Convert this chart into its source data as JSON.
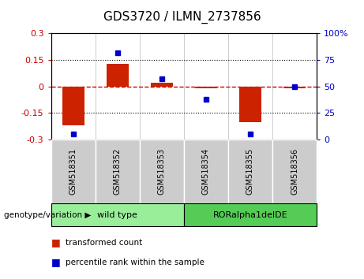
{
  "title": "GDS3720 / ILMN_2737856",
  "samples": [
    "GSM518351",
    "GSM518352",
    "GSM518353",
    "GSM518354",
    "GSM518355",
    "GSM518356"
  ],
  "red_values": [
    -0.22,
    0.13,
    0.02,
    -0.01,
    -0.2,
    -0.01
  ],
  "blue_percentiles": [
    5,
    82,
    57,
    38,
    5,
    50
  ],
  "ylim_left": [
    -0.3,
    0.3
  ],
  "ylim_right": [
    0,
    100
  ],
  "yticks_left": [
    -0.3,
    -0.15,
    0,
    0.15,
    0.3
  ],
  "yticks_right": [
    0,
    25,
    50,
    75,
    100
  ],
  "hline_dotted": [
    -0.15,
    0.15
  ],
  "hline_zero_color": "#cc0000",
  "bar_color": "#cc2200",
  "dot_color": "#0000cc",
  "group_labels": [
    "wild type",
    "RORalpha1delDE"
  ],
  "group_ranges": [
    [
      0,
      3
    ],
    [
      3,
      6
    ]
  ],
  "group_colors": [
    "#99ee99",
    "#55cc55"
  ],
  "genotype_label": "genotype/variation",
  "legend_red": "transformed count",
  "legend_blue": "percentile rank within the sample",
  "bg_color": "#ffffff",
  "plot_bg": "#ffffff",
  "tick_label_color_left": "#cc0000",
  "tick_label_color_right": "#0000cc",
  "sample_box_color": "#cccccc",
  "figsize": [
    4.61,
    3.54
  ],
  "dpi": 100
}
